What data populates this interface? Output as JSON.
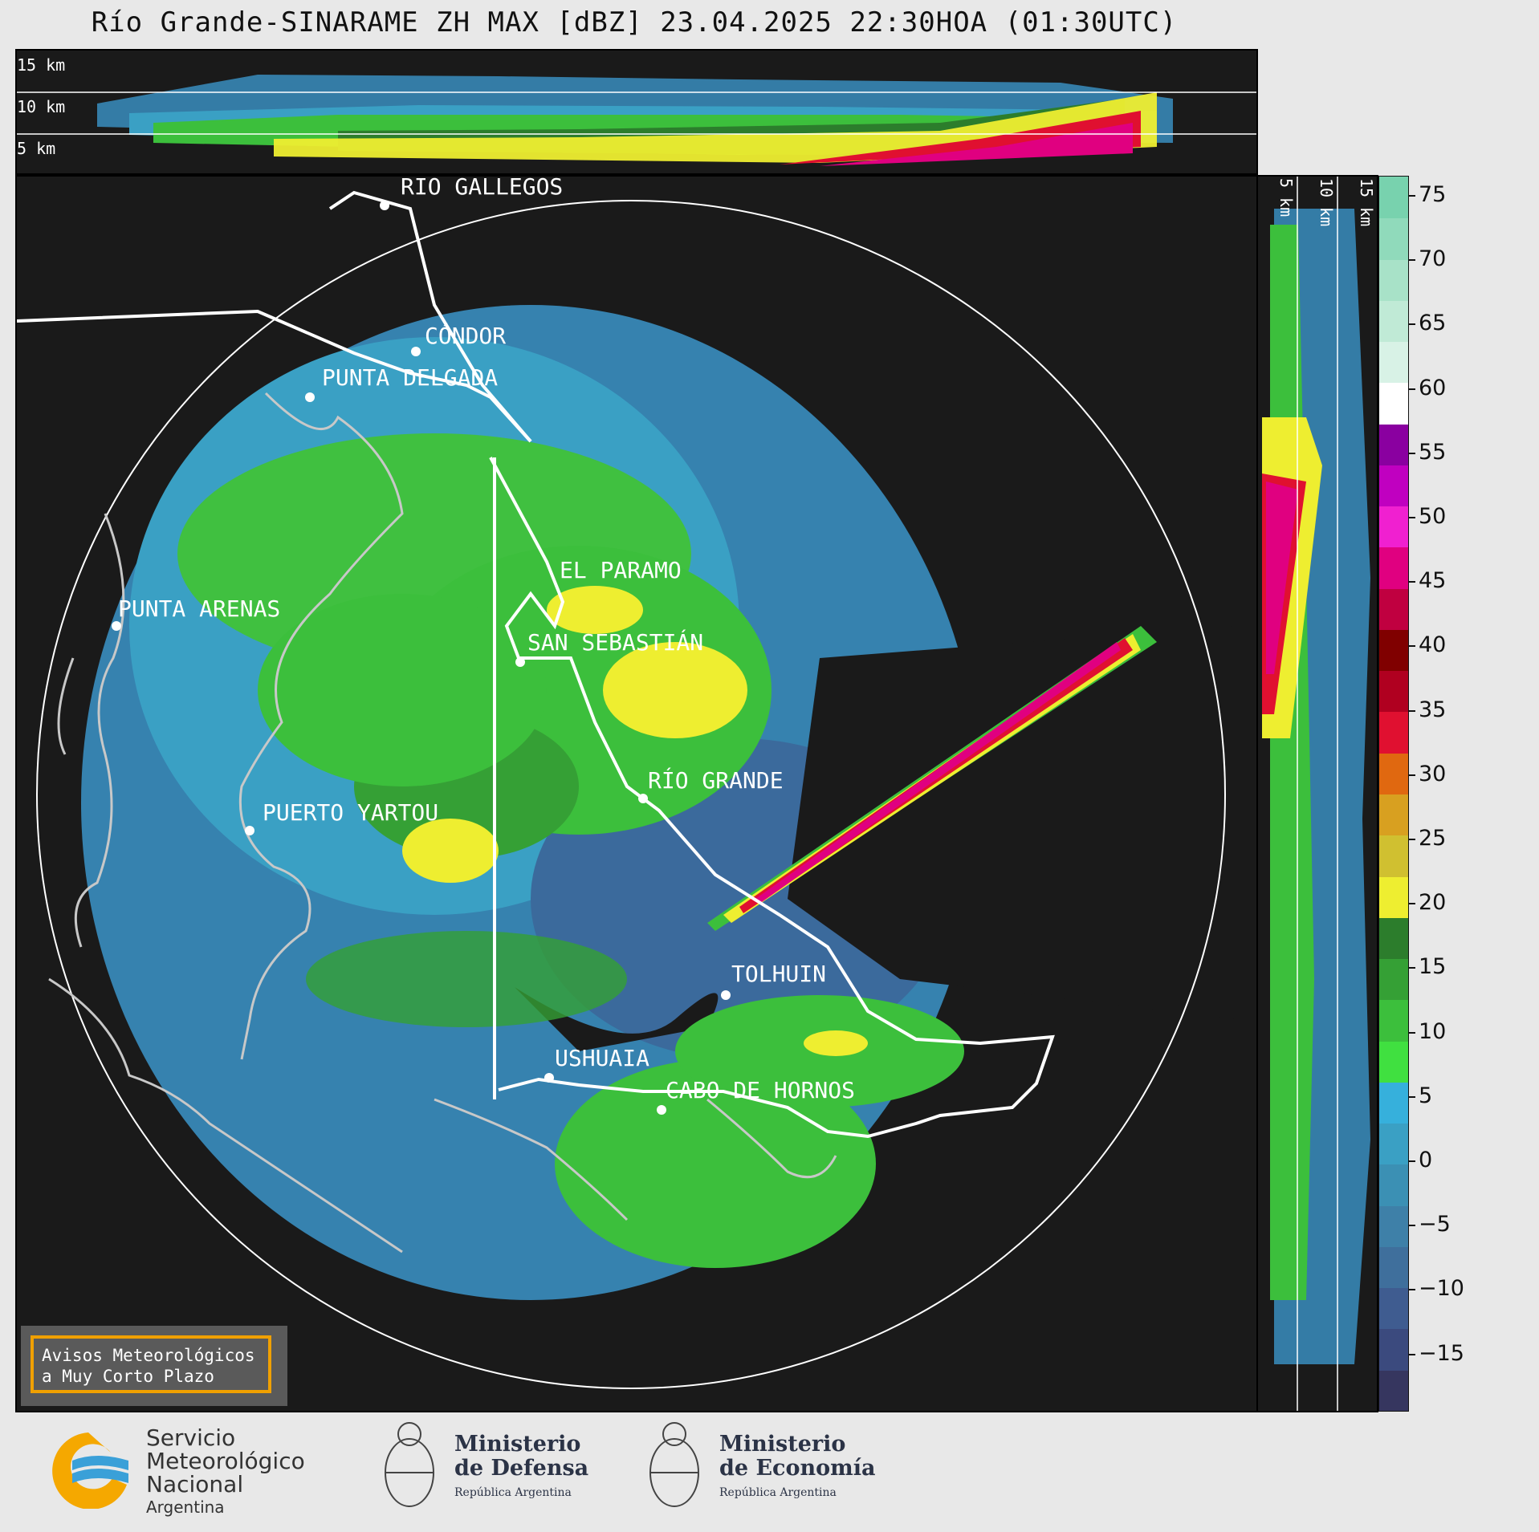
{
  "title": "Río Grande-SINARAME ZH MAX [dBZ] 23.04.2025 22:30HOA (01:30UTC)",
  "top_panel": {
    "height_labels": [
      "15 km",
      "10 km",
      "5 km"
    ]
  },
  "side_panel": {
    "height_labels": [
      "5 km",
      "10 km",
      "15 km"
    ]
  },
  "cities": [
    {
      "name": "RÍO GALLEGOS"
    },
    {
      "name": "CÓNDOR"
    },
    {
      "name": "PUNTA DELGADA"
    },
    {
      "name": "PUNTA ARENAS"
    },
    {
      "name": "EL PARAMO"
    },
    {
      "name": "SAN SEBASTIÁN"
    },
    {
      "name": "RÍO GRANDE"
    },
    {
      "name": "PUERTO YARTOU"
    },
    {
      "name": "TOLHUIN"
    },
    {
      "name": "USHUAIA"
    },
    {
      "name": "CABO DE HORNOS"
    }
  ],
  "colorbar": {
    "unit": "dBZ",
    "ticks": [
      "75",
      "70",
      "65",
      "60",
      "55",
      "50",
      "45",
      "40",
      "35",
      "30",
      "25",
      "20",
      "15",
      "10",
      "5",
      "0",
      "−5",
      "−10",
      "−15"
    ],
    "colors": [
      "#36365f",
      "#3b4a7e",
      "#3f5c90",
      "#3f6f9c",
      "#3e80a8",
      "#3b90b4",
      "#3aa0c4",
      "#36b0dc",
      "#40e040",
      "#3cbf3c",
      "#35a035",
      "#2c7d2c",
      "#eeee30",
      "#d0c030",
      "#d8a020",
      "#e06810",
      "#e01030",
      "#b00020",
      "#800000",
      "#c00040",
      "#e00080",
      "#f020d0",
      "#c000c0",
      "#8a00a0",
      "#ffffff",
      "#d8f2e6",
      "#c0ead6",
      "#a8e2c8",
      "#90dabb",
      "#78d2ae"
    ]
  },
  "warning_box": {
    "line1": "Avisos Meteorológicos",
    "line2": "a Muy Corto Plazo"
  },
  "logos": {
    "smn_lines": [
      "Servicio",
      "Meteorológico",
      "Nacional",
      "Argentina"
    ],
    "defensa_lines": [
      "Ministerio",
      "de Defensa",
      "República Argentina"
    ],
    "economia_lines": [
      "Ministerio",
      "de Economía",
      "República Argentina"
    ]
  }
}
